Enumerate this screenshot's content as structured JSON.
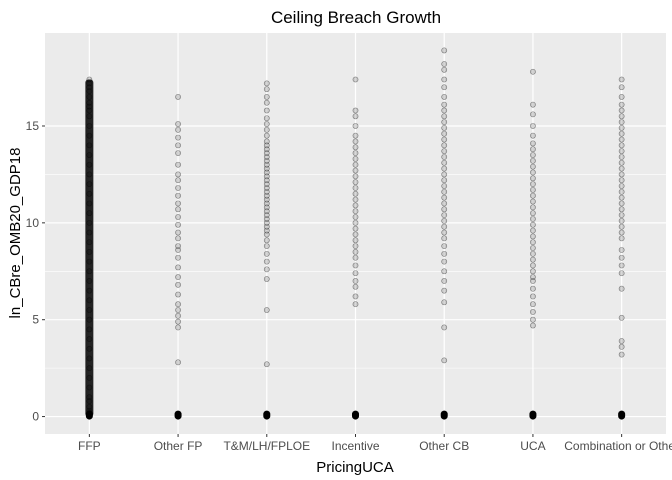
{
  "chart_data": {
    "type": "scatter",
    "title": "Ceiling Breach Growth",
    "xlabel": "PricingUCA",
    "ylabel": "ln_CBre_OMB20_GDP18",
    "categories": [
      "FFP",
      "Other FP",
      "T&M/LH/FPLOE",
      "Incentive",
      "Other CB",
      "UCA",
      "Combination or Other"
    ],
    "yticks": [
      0,
      5,
      10,
      15
    ],
    "ylim": [
      -0.9,
      19.8
    ],
    "grid": true,
    "background": "#ebebeb",
    "point_color": "#000000",
    "point_alpha": 0.15,
    "series": [
      {
        "category": "FFP",
        "values": [
          0.0,
          0.02,
          0.05,
          0.08,
          0.1,
          0.15,
          0.2,
          0.3,
          0.5,
          0.8,
          1.0,
          1.5,
          2.0,
          2.5,
          3.0,
          3.5,
          4.0,
          4.5,
          5.0,
          5.5,
          6.0,
          6.5,
          7.0,
          7.5,
          8.0,
          8.5,
          9.0,
          9.5,
          10.0,
          10.5,
          11.0,
          11.5,
          12.0,
          12.5,
          13.0,
          13.5,
          14.0,
          14.5,
          15.0,
          15.5,
          15.8,
          16.0,
          16.2,
          16.5,
          16.8,
          17.0,
          17.2,
          17.4
        ]
      },
      {
        "category": "Other FP",
        "values": [
          0.0,
          0.02,
          0.05,
          0.1,
          0.15,
          2.8,
          4.6,
          4.9,
          5.2,
          5.5,
          5.8,
          6.3,
          6.8,
          7.2,
          7.7,
          8.2,
          8.6,
          8.8,
          9.2,
          9.5,
          9.9,
          10.3,
          10.7,
          11.0,
          11.4,
          11.8,
          12.2,
          12.5,
          13.0,
          13.6,
          14.0,
          14.4,
          14.8,
          15.1,
          16.5
        ]
      },
      {
        "category": "T&M/LH/FPLOE",
        "values": [
          0.0,
          0.02,
          0.05,
          0.1,
          0.15,
          2.7,
          5.5,
          7.1,
          7.6,
          8.0,
          8.4,
          8.8,
          9.1,
          9.4,
          9.6,
          9.8,
          10.0,
          10.2,
          10.4,
          10.6,
          10.8,
          11.0,
          11.2,
          11.4,
          11.6,
          11.8,
          12.0,
          12.2,
          12.4,
          12.6,
          12.8,
          13.0,
          13.2,
          13.4,
          13.6,
          13.8,
          14.0,
          14.2,
          14.5,
          14.8,
          15.1,
          15.4,
          15.8,
          16.2,
          16.5,
          16.9,
          17.2
        ]
      },
      {
        "category": "Incentive",
        "values": [
          0.0,
          0.02,
          0.05,
          0.1,
          0.15,
          5.8,
          6.2,
          6.7,
          7.0,
          7.4,
          7.8,
          8.2,
          8.5,
          8.8,
          9.1,
          9.4,
          9.7,
          10.0,
          10.3,
          10.6,
          10.9,
          11.2,
          11.5,
          11.8,
          12.1,
          12.4,
          12.7,
          13.0,
          13.3,
          13.6,
          13.9,
          14.2,
          14.5,
          15.0,
          15.5,
          15.8,
          17.4
        ]
      },
      {
        "category": "Other CB",
        "values": [
          0.0,
          0.02,
          0.05,
          0.1,
          0.15,
          2.9,
          4.6,
          5.9,
          6.5,
          7.0,
          7.5,
          8.0,
          8.4,
          8.8,
          9.2,
          9.5,
          9.8,
          10.1,
          10.4,
          10.7,
          11.0,
          11.3,
          11.6,
          11.9,
          12.2,
          12.5,
          12.8,
          13.1,
          13.4,
          13.7,
          14.0,
          14.3,
          14.6,
          14.9,
          15.2,
          15.5,
          15.8,
          16.1,
          16.5,
          17.0,
          17.4,
          17.9,
          18.2,
          18.9
        ]
      },
      {
        "category": "UCA",
        "values": [
          0.0,
          0.02,
          0.05,
          0.1,
          0.15,
          4.7,
          5.0,
          5.4,
          5.8,
          6.2,
          6.6,
          7.0,
          7.2,
          7.5,
          7.8,
          8.1,
          8.4,
          8.7,
          9.0,
          9.3,
          9.6,
          9.9,
          10.2,
          10.5,
          10.8,
          11.1,
          11.4,
          11.7,
          12.0,
          12.3,
          12.6,
          12.9,
          13.2,
          13.5,
          13.8,
          14.1,
          14.5,
          15.0,
          15.6,
          16.1,
          17.8
        ]
      },
      {
        "category": "Combination or Other",
        "values": [
          0.0,
          0.02,
          0.05,
          0.1,
          0.15,
          3.2,
          3.6,
          3.9,
          5.1,
          6.6,
          7.4,
          7.8,
          8.2,
          8.6,
          9.2,
          9.5,
          9.8,
          10.1,
          10.4,
          10.7,
          11.0,
          11.3,
          11.6,
          11.9,
          12.2,
          12.5,
          12.8,
          13.1,
          13.4,
          13.7,
          14.0,
          14.3,
          14.6,
          14.9,
          15.2,
          15.5,
          15.8,
          16.1,
          16.5,
          17.0,
          17.4
        ]
      }
    ]
  }
}
